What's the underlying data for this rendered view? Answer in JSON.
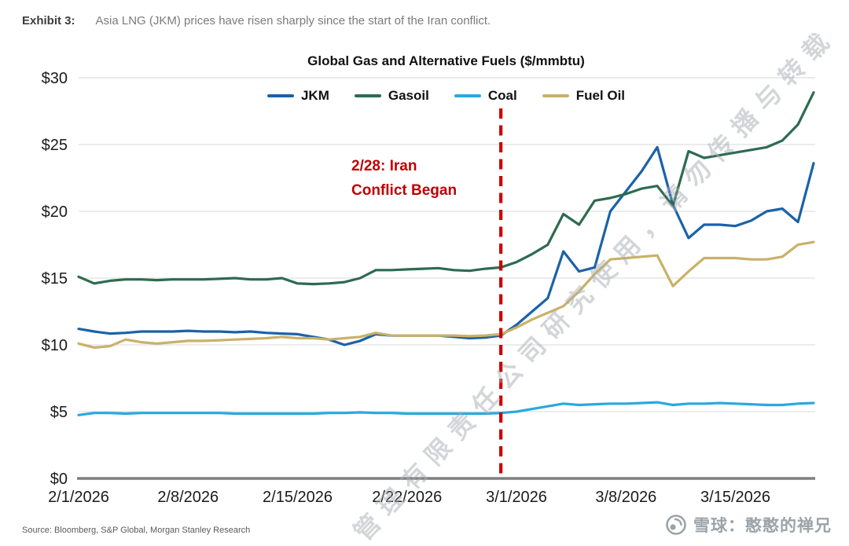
{
  "exhibit": {
    "label": "Exhibit 3:",
    "caption": "Asia LNG (JKM) prices have risen sharply since the start of the Iran conflict."
  },
  "chart_data": {
    "type": "line",
    "title": "Global Gas and Alternative Fuels ($/mmbtu)",
    "ylabel": "",
    "xlabel": "",
    "ylim": [
      0,
      30
    ],
    "grid": "horizontal",
    "legend_position": "top-center",
    "y_ticks": {
      "values": [
        0,
        5,
        10,
        15,
        20,
        25,
        30
      ],
      "labels": [
        "$0",
        "$5",
        "$10",
        "$15",
        "$20",
        "$25",
        "$30"
      ]
    },
    "x_ticks": {
      "indices": [
        0,
        7,
        14,
        21,
        28,
        35,
        42
      ],
      "labels": [
        "2/1/2026",
        "2/8/2026",
        "2/15/2026",
        "2/22/2026",
        "3/1/2026",
        "3/8/2026",
        "3/15/2026"
      ]
    },
    "dates": [
      "2/1/2026",
      "2/2/2026",
      "2/3/2026",
      "2/4/2026",
      "2/5/2026",
      "2/6/2026",
      "2/7/2026",
      "2/8/2026",
      "2/9/2026",
      "2/10/2026",
      "2/11/2026",
      "2/12/2026",
      "2/13/2026",
      "2/14/2026",
      "2/15/2026",
      "2/16/2026",
      "2/17/2026",
      "2/18/2026",
      "2/19/2026",
      "2/20/2026",
      "2/21/2026",
      "2/22/2026",
      "2/23/2026",
      "2/24/2026",
      "2/25/2026",
      "2/26/2026",
      "2/27/2026",
      "2/28/2026",
      "3/1/2026",
      "3/2/2026",
      "3/3/2026",
      "3/4/2026",
      "3/5/2026",
      "3/6/2026",
      "3/7/2026",
      "3/8/2026",
      "3/9/2026",
      "3/10/2026",
      "3/11/2026",
      "3/12/2026",
      "3/13/2026",
      "3/14/2026",
      "3/15/2026",
      "3/16/2026",
      "3/17/2026",
      "3/18/2026",
      "3/19/2026",
      "3/20/2026"
    ],
    "series": [
      {
        "name": "JKM",
        "color": "#1b62a8",
        "values": [
          11.2,
          11.0,
          10.85,
          10.9,
          11.0,
          11.0,
          11.0,
          11.05,
          11.0,
          11.0,
          10.95,
          11.0,
          10.9,
          10.85,
          10.8,
          10.6,
          10.4,
          10.0,
          10.3,
          10.8,
          10.7,
          10.7,
          10.7,
          10.7,
          10.6,
          10.5,
          10.55,
          10.7,
          11.5,
          12.5,
          13.5,
          17.0,
          15.5,
          15.8,
          20.0,
          21.5,
          23.0,
          24.8,
          20.5,
          18.0,
          19.0,
          19.0,
          18.9,
          19.3,
          20.0,
          20.2,
          19.2,
          23.6
        ]
      },
      {
        "name": "Gasoil",
        "color": "#2e6b50",
        "values": [
          15.1,
          14.6,
          14.8,
          14.9,
          14.9,
          14.85,
          14.9,
          14.9,
          14.9,
          14.95,
          15.0,
          14.9,
          14.9,
          15.0,
          14.6,
          14.55,
          14.6,
          14.7,
          15.0,
          15.6,
          15.6,
          15.65,
          15.7,
          15.75,
          15.6,
          15.55,
          15.7,
          15.8,
          16.2,
          16.8,
          17.5,
          19.8,
          19.0,
          20.8,
          21.0,
          21.3,
          21.7,
          21.9,
          20.4,
          24.5,
          24.0,
          24.2,
          24.4,
          24.6,
          24.8,
          25.3,
          26.5,
          28.9
        ]
      },
      {
        "name": "Coal",
        "color": "#29a9e1",
        "values": [
          4.75,
          4.9,
          4.9,
          4.85,
          4.9,
          4.9,
          4.9,
          4.9,
          4.9,
          4.9,
          4.85,
          4.85,
          4.85,
          4.85,
          4.85,
          4.85,
          4.9,
          4.9,
          4.95,
          4.9,
          4.9,
          4.85,
          4.85,
          4.85,
          4.85,
          4.85,
          4.85,
          4.9,
          5.0,
          5.2,
          5.4,
          5.6,
          5.5,
          5.55,
          5.6,
          5.6,
          5.65,
          5.7,
          5.5,
          5.6,
          5.6,
          5.65,
          5.6,
          5.55,
          5.5,
          5.5,
          5.6,
          5.65
        ]
      },
      {
        "name": "Fuel Oil",
        "color": "#c9b168",
        "values": [
          10.1,
          9.8,
          9.9,
          10.4,
          10.2,
          10.1,
          10.2,
          10.3,
          10.3,
          10.35,
          10.4,
          10.45,
          10.5,
          10.6,
          10.5,
          10.5,
          10.4,
          10.5,
          10.6,
          10.9,
          10.7,
          10.7,
          10.7,
          10.7,
          10.7,
          10.65,
          10.7,
          10.8,
          11.3,
          11.9,
          12.4,
          12.9,
          14.0,
          15.3,
          16.4,
          16.5,
          16.6,
          16.7,
          14.4,
          15.5,
          16.5,
          16.5,
          16.5,
          16.4,
          16.4,
          16.6,
          17.5,
          17.7
        ]
      }
    ],
    "event_line": {
      "date_index": 27,
      "color": "#cc0000",
      "label_lines": [
        "2/28: Iran",
        "Conflict Began"
      ]
    }
  },
  "source": "Source: Bloomberg, S&P Global, Morgan Stanley Research",
  "watermark": {
    "diagonal": "管理有限责任公司研究使用，请勿传播与转载",
    "brand": "雪球：憨憨的禅兄"
  }
}
